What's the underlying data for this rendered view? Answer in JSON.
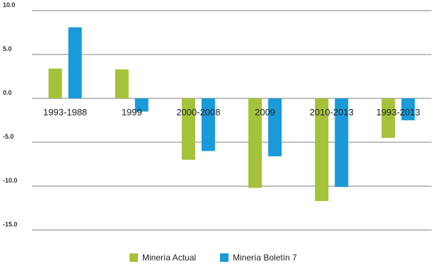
{
  "chart_data": {
    "type": "bar",
    "categories": [
      "1993-1988",
      "1999",
      "2000-2008",
      "2009",
      "2010-2013",
      "1993-2013"
    ],
    "series": [
      {
        "name": "Minería Actual",
        "color": "#a6c13a",
        "values": [
          3.4,
          3.3,
          -7.0,
          -10.2,
          -11.7,
          -4.5
        ]
      },
      {
        "name": "Minería Boletín 7",
        "color": "#1a9ad8",
        "values": [
          8.1,
          -1.5,
          -6.0,
          -6.6,
          -10.1,
          -2.5
        ]
      }
    ],
    "yticks": [
      "10.0",
      "5.0",
      "0.0",
      "-5.0",
      "-10.0",
      "-15.0"
    ],
    "ylim": [
      -15,
      10
    ],
    "grid": true,
    "legend_position": "bottom-center",
    "title": "",
    "xlabel": "",
    "ylabel": ""
  }
}
